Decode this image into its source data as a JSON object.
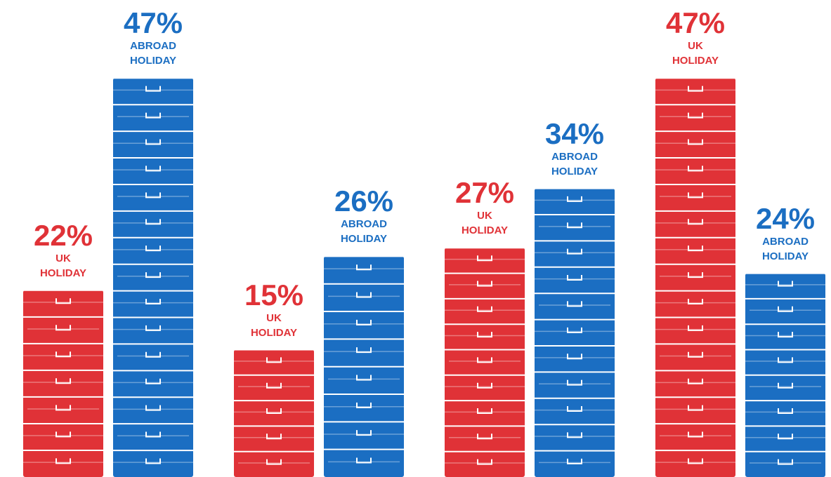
{
  "chart_data": {
    "type": "bar",
    "categories": [
      null,
      null,
      null,
      null
    ],
    "series": [
      {
        "name": "UK HOLIDAY",
        "color": "#e03237",
        "values": [
          22,
          15,
          27,
          47
        ],
        "value_labels": [
          "22%",
          "15%",
          "27%",
          "47%"
        ]
      },
      {
        "name": "ABROAD HOLIDAY",
        "color": "#1b6ec2",
        "values": [
          47,
          26,
          34,
          24
        ],
        "value_labels": [
          "47%",
          "26%",
          "34%",
          "24%"
        ]
      }
    ]
  }
}
